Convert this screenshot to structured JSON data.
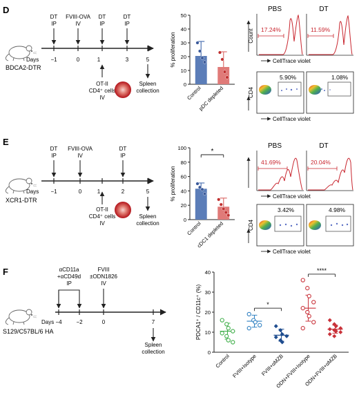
{
  "panels": {
    "D": {
      "letter": "D",
      "strain": "BDCA2-DTR",
      "days_label": "Days",
      "days": [
        "−1",
        "0",
        "1",
        "3",
        "5"
      ],
      "top_events": [
        {
          "line1": "DT",
          "line2": "IP"
        },
        {
          "line1": "FVIII-OVA",
          "line2": "IV"
        },
        {
          "line1": "DT",
          "line2": "IP"
        },
        {
          "line1": "DT",
          "line2": "IP"
        }
      ],
      "transfer": {
        "line1": "OT-II",
        "line2": "CD4⁺ cells",
        "line3": "IV"
      },
      "end": {
        "line1": "Spleen",
        "line2": "collection"
      },
      "flow": {
        "conditions": [
          "PBS",
          "DT"
        ],
        "histogram_pcts": [
          "17.24%",
          "11.59%"
        ],
        "dot_pcts": [
          "5.90%",
          "1.08%"
        ],
        "x_label": "CellTrace violet",
        "hist_y": "Count",
        "dot_y": "CD4"
      }
    },
    "E": {
      "letter": "E",
      "strain": "XCR1-DTR",
      "days_label": "Days",
      "days": [
        "−1",
        "0",
        "1",
        "2",
        "5"
      ],
      "top_events": [
        {
          "line1": "DT",
          "line2": "IP"
        },
        {
          "line1": "FVIII-OVA",
          "line2": "IV"
        },
        {
          "line1": "DT",
          "line2": "IP"
        }
      ],
      "transfer": {
        "line1": "OT-II",
        "line2": "CD4⁺ cells",
        "line3": "IV"
      },
      "end": {
        "line1": "Spleen",
        "line2": "collection"
      },
      "flow": {
        "conditions": [
          "PBS",
          "DT"
        ],
        "histogram_pcts": [
          "41.69%",
          "20.04%"
        ],
        "dot_pcts": [
          "3.42%",
          "4.98%"
        ],
        "x_label": "CellTrace violet",
        "dot_y": "CD4"
      }
    },
    "F": {
      "letter": "F",
      "strain": "S129/C57BL/6 HA",
      "days_label": "Days",
      "days": [
        "−4",
        "−2",
        "0",
        "7"
      ],
      "treat": {
        "line1": "αCD11a",
        "line2": "+αCD49d",
        "line3": "IP"
      },
      "fviii": {
        "line1": "FVIII",
        "line2": "±ODN1826",
        "line3": "IV"
      },
      "end": {
        "line1": "Spleen",
        "line2": "collection"
      }
    }
  },
  "chart_data": [
    {
      "type": "bar",
      "panel": "D",
      "ylabel": "% proliferation",
      "ylim": [
        0,
        50
      ],
      "yticks": [
        0,
        10,
        20,
        30,
        40,
        50
      ],
      "categories": [
        "Control",
        "pDC depleted"
      ],
      "bar_colors": [
        "#5b7db8",
        "#e07a78"
      ],
      "values": [
        20.5,
        12.5
      ],
      "errors": [
        10.5,
        11
      ],
      "points": [
        [
          30,
          24,
          19,
          16
        ],
        [
          23,
          18,
          9,
          5
        ]
      ],
      "sig": ""
    },
    {
      "type": "bar",
      "panel": "E",
      "ylabel": "% proliferation",
      "ylim": [
        0,
        100
      ],
      "yticks": [
        0,
        20,
        40,
        60,
        80,
        100
      ],
      "categories": [
        "Control",
        "cDC1 depleted"
      ],
      "bar_colors": [
        "#5b7db8",
        "#e07a78"
      ],
      "values": [
        43,
        18
      ],
      "errors": [
        8,
        12
      ],
      "points": [
        [
          50,
          45,
          42,
          36
        ],
        [
          28,
          21,
          15,
          10,
          6
        ]
      ],
      "sig": "*"
    },
    {
      "type": "scatter",
      "panel": "F",
      "ylabel": "PDCA1⁺ / CD11c⁺ (%)",
      "ylim": [
        0,
        40
      ],
      "yticks": [
        0,
        10,
        20,
        30,
        40
      ],
      "categories": [
        "Control",
        "FVIII+Isotype",
        "FVIII+αMZB",
        "ODN+FVIII+Isotype",
        "ODN+FVIII+αMZB"
      ],
      "colors": [
        "#3fae49",
        "#2d7fc1",
        "#1f4d8f",
        "#c9323a",
        "#c9323a"
      ],
      "filled": [
        false,
        false,
        true,
        false,
        true
      ],
      "means": [
        10.5,
        15.5,
        8.5,
        22,
        11.5
      ],
      "sd": [
        4,
        3,
        3,
        6.5,
        2
      ],
      "points": [
        [
          16,
          14,
          12,
          10.5,
          9.5,
          8,
          6,
          5
        ],
        [
          19,
          16,
          15,
          13.5,
          12
        ],
        [
          13,
          11,
          9,
          8,
          7.5,
          6,
          5
        ],
        [
          36,
          32,
          28,
          25,
          22,
          20,
          18,
          15,
          12
        ],
        [
          16,
          14,
          13,
          12,
          11.5,
          11,
          10.5,
          10,
          9,
          8
        ]
      ],
      "sig": [
        {
          "from": 1,
          "to": 2,
          "label": "*"
        },
        {
          "from": 3,
          "to": 4,
          "label": "****"
        }
      ]
    }
  ]
}
